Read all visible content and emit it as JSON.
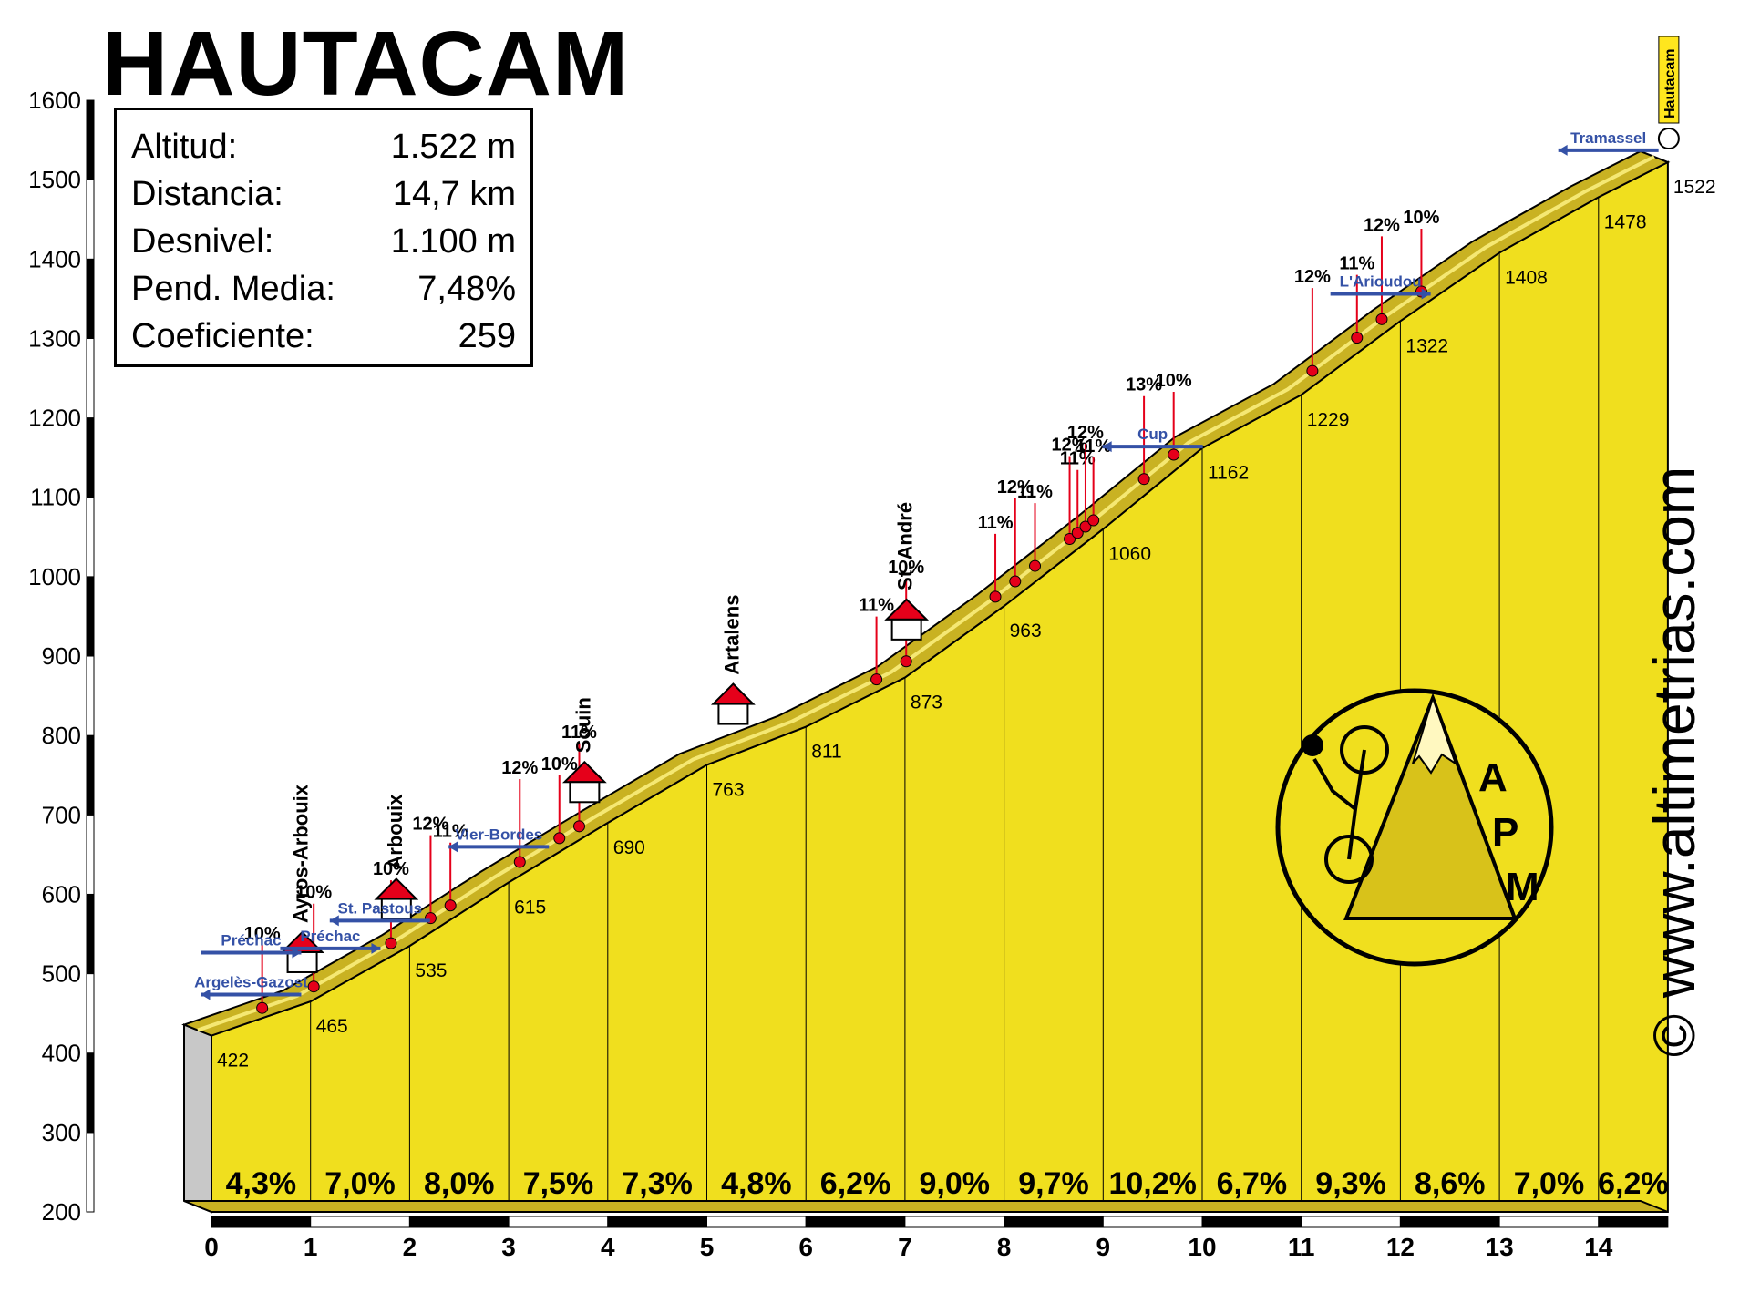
{
  "title": "HAUTACAM",
  "stats": [
    {
      "label": "Altitud:",
      "value": "1.522 m"
    },
    {
      "label": "Distancia:",
      "value": "14,7 km"
    },
    {
      "label": "Desnivel:",
      "value": "1.100 m"
    },
    {
      "label": "Pend. Media:",
      "value": "7,48%"
    },
    {
      "label": "Coeficiente:",
      "value": "259"
    }
  ],
  "watermark": "© www.altimetrias.com",
  "logo_text": [
    "A",
    "P",
    "M"
  ],
  "colors": {
    "profile": "#f0df1e",
    "road": "#c9b222",
    "ridge": "#f5e873",
    "gradient_marker": "#e5001a",
    "label_blue": "#3451a6"
  },
  "chart_data": {
    "type": "area",
    "title": "HAUTACAM",
    "xlabel": "",
    "ylabel": "",
    "xlim": [
      0,
      14.7
    ],
    "ylim": [
      200,
      1600
    ],
    "x_ticks": [
      0,
      1,
      2,
      3,
      4,
      5,
      6,
      7,
      8,
      9,
      10,
      11,
      12,
      13,
      14
    ],
    "y_ticks": [
      200,
      300,
      400,
      500,
      600,
      700,
      800,
      900,
      1000,
      1100,
      1200,
      1300,
      1400,
      1500,
      1600
    ],
    "profile": [
      {
        "km": 0,
        "alt": 422
      },
      {
        "km": 1,
        "alt": 465
      },
      {
        "km": 2,
        "alt": 535
      },
      {
        "km": 3,
        "alt": 615
      },
      {
        "km": 4,
        "alt": 690
      },
      {
        "km": 5,
        "alt": 763
      },
      {
        "km": 6,
        "alt": 811
      },
      {
        "km": 7,
        "alt": 873
      },
      {
        "km": 8,
        "alt": 963
      },
      {
        "km": 9,
        "alt": 1060
      },
      {
        "km": 10,
        "alt": 1162
      },
      {
        "km": 11,
        "alt": 1229
      },
      {
        "km": 12,
        "alt": 1322
      },
      {
        "km": 13,
        "alt": 1408
      },
      {
        "km": 14,
        "alt": 1478
      },
      {
        "km": 14.7,
        "alt": 1522
      }
    ],
    "altitude_labels": [
      "422",
      "465",
      "535",
      "615",
      "690",
      "763",
      "811",
      "873",
      "963",
      "1060",
      "1162",
      "1229",
      "1322",
      "1408",
      "1478",
      "1522"
    ],
    "km_gradients": [
      "4,3%",
      "7,0%",
      "8,0%",
      "7,5%",
      "7,3%",
      "4,8%",
      "6,2%",
      "9,0%",
      "9,7%",
      "10,2%",
      "6,7%",
      "9,3%",
      "8,6%",
      "7,0%",
      "6,2%"
    ],
    "steep_points": [
      {
        "km": 0.65,
        "label": "10%"
      },
      {
        "km": 1.17,
        "label": "10%"
      },
      {
        "km": 1.95,
        "label": "10%"
      },
      {
        "km": 2.35,
        "label": "12%"
      },
      {
        "km": 2.55,
        "label": "11%"
      },
      {
        "km": 3.25,
        "label": "12%"
      },
      {
        "km": 3.65,
        "label": "10%"
      },
      {
        "km": 3.85,
        "label": "11%"
      },
      {
        "km": 6.85,
        "label": "11%"
      },
      {
        "km": 7.15,
        "label": "10%"
      },
      {
        "km": 8.05,
        "label": "11%"
      },
      {
        "km": 8.25,
        "label": "12%"
      },
      {
        "km": 8.45,
        "label": "11%"
      },
      {
        "km": 8.8,
        "label": "12%"
      },
      {
        "km": 8.88,
        "label": "11%"
      },
      {
        "km": 8.96,
        "label": "12%"
      },
      {
        "km": 9.04,
        "label": "11%"
      },
      {
        "km": 9.55,
        "label": "13%"
      },
      {
        "km": 9.85,
        "label": "10%"
      },
      {
        "km": 11.25,
        "label": "12%"
      },
      {
        "km": 11.7,
        "label": "11%"
      },
      {
        "km": 11.95,
        "label": "12%"
      },
      {
        "km": 12.35,
        "label": "10%"
      }
    ],
    "villages": [
      {
        "km": 1.1,
        "name": "Ayros-Arbouix"
      },
      {
        "km": 2.05,
        "name": "Arbouix"
      },
      {
        "km": 3.95,
        "name": "Souin"
      },
      {
        "km": 5.45,
        "name": "Artalens"
      },
      {
        "km": 7.2,
        "name": "St. André"
      }
    ],
    "junctions": [
      {
        "km": 0.4,
        "name": "Préchac",
        "dir": "right"
      },
      {
        "km": 0.4,
        "name": "Argelès-Gazost",
        "dir": "left"
      },
      {
        "km": 1.2,
        "name": "Préchac",
        "dir": "right"
      },
      {
        "km": 1.7,
        "name": "St. Pastous",
        "dir": "left"
      },
      {
        "km": 2.9,
        "name": "Vier-Bordes",
        "dir": "left"
      },
      {
        "km": 9.5,
        "name": "Cup",
        "dir": "left"
      },
      {
        "km": 11.8,
        "name": "L'Arioudou",
        "dir": "right"
      },
      {
        "km": 14.1,
        "name": "Tramassel",
        "dir": "left"
      }
    ],
    "summit_label": "Hautacam"
  }
}
